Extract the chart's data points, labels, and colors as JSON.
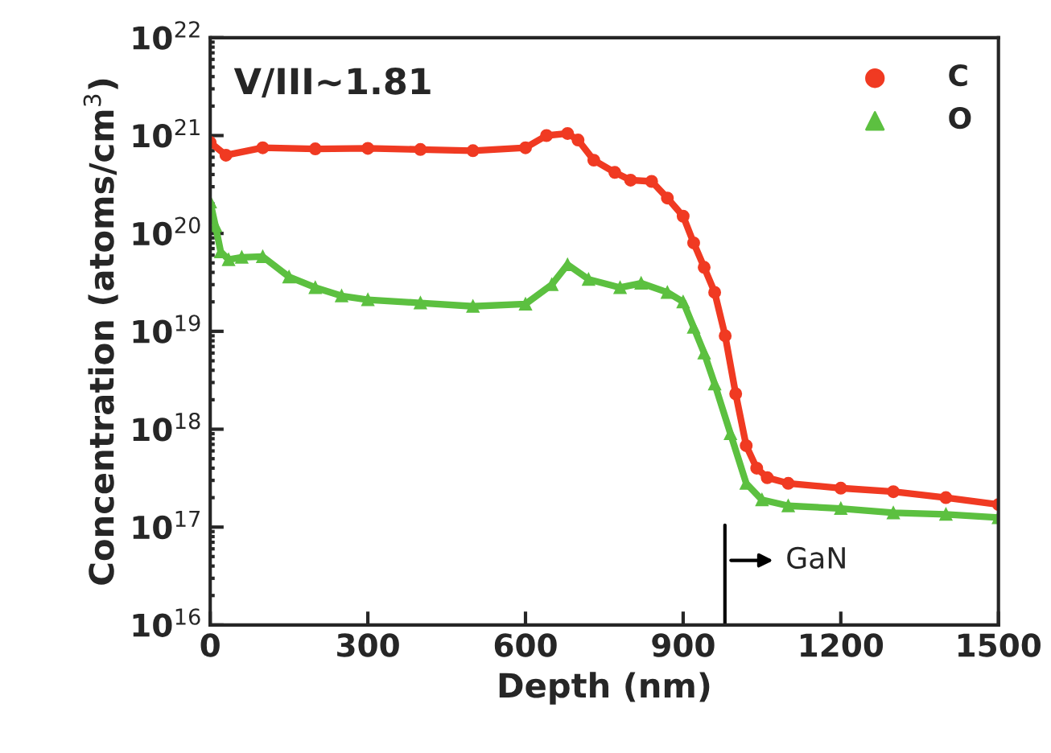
{
  "chart_data": {
    "type": "line",
    "xlabel": "Depth (nm)",
    "ylabel": "Concentration (atoms/cm$^{3}$)",
    "log": "y",
    "xlim": [
      0,
      1500
    ],
    "xticks": [
      0,
      300,
      600,
      900,
      1200,
      1500
    ],
    "ylim": [
      1e+16,
      1e+22
    ],
    "yticks": [
      {
        "value": 1e+16,
        "label": "10$^{16}$"
      },
      {
        "value": 1e+17,
        "label": "10$^{17}$"
      },
      {
        "value": 1e+18,
        "label": "10$^{18}$"
      },
      {
        "value": 1e+19,
        "label": "10$^{19}$"
      },
      {
        "value": 1e+20,
        "label": "10$^{20}$"
      },
      {
        "value": 1e+21,
        "label": "10$^{21}$"
      },
      {
        "value": 1e+22,
        "label": "10$^{22}$"
      }
    ],
    "legend": "top right",
    "grid": false,
    "annotations": [
      "V/III~1.81",
      "GaN"
    ],
    "series": [
      {
        "name": "C",
        "color": "#f03a22",
        "marker": "circle",
        "x": [
          0,
          30,
          100,
          200,
          300,
          400,
          500,
          600,
          640,
          680,
          700,
          730,
          770,
          800,
          840,
          870,
          900,
          920,
          940,
          960,
          980,
          1000,
          1020,
          1040,
          1060,
          1100,
          1200,
          1300,
          1400,
          1500
        ],
        "values": [
          8.5e+20,
          6.3e+20,
          7.5e+20,
          7.3e+20,
          7.4e+20,
          7.2e+20,
          7e+20,
          7.5e+20,
          1e+21,
          1.05e+21,
          9e+20,
          5.6e+20,
          4.2e+20,
          3.5e+20,
          3.4e+20,
          2.3e+20,
          1.5e+20,
          8e+19,
          4.5e+19,
          2.5e+19,
          9e+18,
          2.3e+18,
          6.8e+17,
          4e+17,
          3.2e+17,
          2.8e+17,
          2.5e+17,
          2.3e+17,
          2e+17,
          1.7e+17
        ]
      },
      {
        "name": "O",
        "color": "#5cc040",
        "marker": "triangle",
        "x": [
          0,
          10,
          20,
          35,
          60,
          100,
          150,
          200,
          250,
          300,
          400,
          500,
          600,
          650,
          680,
          720,
          780,
          820,
          870,
          900,
          920,
          940,
          960,
          990,
          1020,
          1050,
          1100,
          1200,
          1300,
          1400,
          1500
        ],
        "values": [
          2.1e+20,
          1.2e+20,
          6.5e+19,
          5.4e+19,
          5.7e+19,
          5.8e+19,
          3.6e+19,
          2.8e+19,
          2.3e+19,
          2.1e+19,
          1.95e+19,
          1.8e+19,
          1.9e+19,
          3e+19,
          4.8e+19,
          3.4e+19,
          2.8e+19,
          3.1e+19,
          2.5e+19,
          2e+19,
          1.1e+19,
          6e+18,
          2.9e+18,
          9e+17,
          2.8e+17,
          1.9e+17,
          1.65e+17,
          1.55e+17,
          1.4e+17,
          1.35e+17,
          1.25e+17
        ]
      }
    ]
  }
}
